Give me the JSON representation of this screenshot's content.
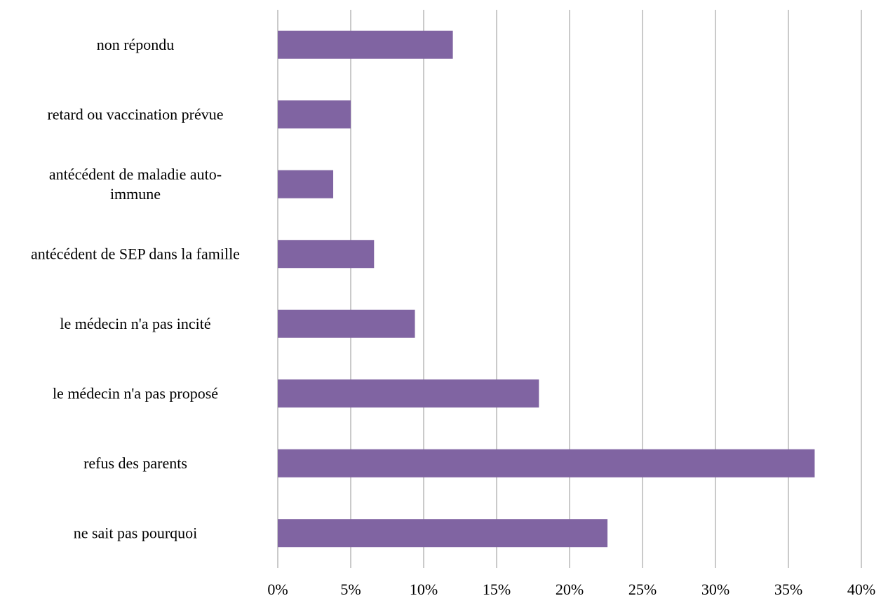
{
  "chart_data": {
    "type": "bar",
    "orientation": "horizontal",
    "categories": [
      [
        "non répondu"
      ],
      [
        "retard ou vaccination prévue"
      ],
      [
        "antécédent de maladie auto-",
        "immune"
      ],
      [
        "antécédent de SEP dans la famille"
      ],
      [
        "le médecin n'a pas incité"
      ],
      [
        "le médecin n'a pas proposé"
      ],
      [
        "refus des parents"
      ],
      [
        "ne sait pas pourquoi"
      ]
    ],
    "values": [
      12,
      5,
      3.8,
      6.6,
      9.4,
      17.9,
      36.8,
      22.6
    ],
    "xlim": [
      0,
      40
    ],
    "x_ticks": [
      0,
      5,
      10,
      15,
      20,
      25,
      30,
      35,
      40
    ],
    "x_tick_labels": [
      "0%",
      "5%",
      "10%",
      "15%",
      "20%",
      "25%",
      "30%",
      "35%",
      "40%"
    ],
    "title": "",
    "xlabel": "",
    "ylabel": "",
    "grid": "vertical",
    "legend": "none",
    "colors": {
      "bar": "#8064a2",
      "grid": "#a6a6a6",
      "text": "#000000"
    }
  }
}
